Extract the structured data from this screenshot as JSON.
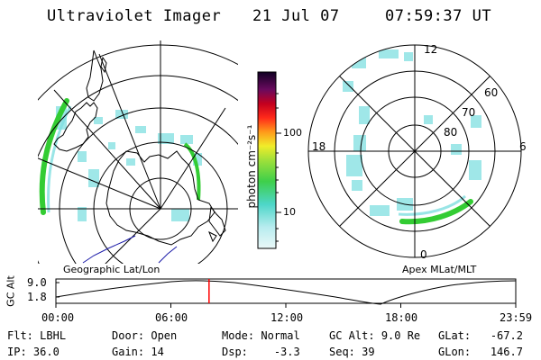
{
  "header": {
    "title": "Ultraviolet Imager",
    "date": "21 Jul 07",
    "time": "07:59:37 UT"
  },
  "left_panel": {
    "caption": "Geographic Lat/Lon"
  },
  "right_panel": {
    "caption": "Apex MLat/MLT",
    "mlt_labels": {
      "top": "12",
      "left": "18",
      "right": "6",
      "bottom": "0"
    },
    "lat_labels": [
      "60",
      "70",
      "80"
    ]
  },
  "colorbar": {
    "unit_label": "photon cm⁻²s⁻¹",
    "ticks": [
      "100",
      "10"
    ]
  },
  "timeline": {
    "ylabel": "GC Alt",
    "yticks": [
      "9.0",
      "1.8"
    ],
    "xticks": [
      "00:00",
      "06:00",
      "12:00",
      "18:00",
      "23:59"
    ],
    "current_time_fraction": 0.333
  },
  "status": {
    "flt_label": "Flt:",
    "flt_value": "LBHL",
    "ip_label": "IP:",
    "ip_value": "36.0",
    "door_label": "Door:",
    "door_value": "Open",
    "gain_label": "Gain:",
    "gain_value": "14",
    "mode_label": "Mode:",
    "mode_value": "Normal",
    "dsp_label": "Dsp:",
    "dsp_value": "-3.3",
    "gcalt_label": "GC Alt:",
    "gcalt_value": "9.0 Re",
    "seq_label": "Seq:",
    "seq_value": "39",
    "glat_label": "GLat:",
    "glat_value": "-67.2",
    "glon_label": "GLon:",
    "glon_value": "146.7"
  },
  "colors": {
    "aurora_green": "#33cc33",
    "aurora_cyan": "#7fdfe0",
    "marker_red": "#ff0000",
    "coast_blue": "#1a1aa8"
  }
}
